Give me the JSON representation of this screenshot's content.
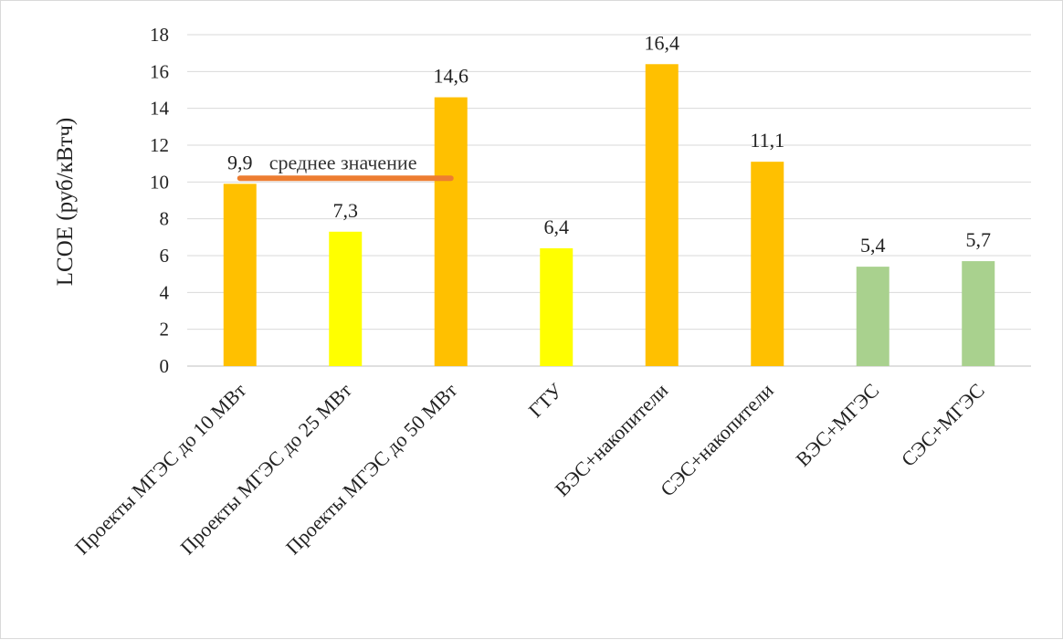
{
  "chart_data": {
    "type": "bar",
    "title": "",
    "xlabel": "",
    "ylabel": "LCOE (руб/кВтч)",
    "ylim": [
      0,
      18
    ],
    "yticks": [
      0,
      2,
      4,
      6,
      8,
      10,
      12,
      14,
      16,
      18
    ],
    "grid": true,
    "legend": "none",
    "categories": [
      "Проекты МГЭС до 10 МВт",
      "Проекты МГЭС до 25 МВт",
      "Проекты МГЭС до 50 МВт",
      "ГТУ",
      "ВЭС+накопители",
      "СЭС+накопители",
      "ВЭС+МГЭС",
      "СЭС+МГЭС"
    ],
    "values": [
      9.9,
      7.3,
      14.6,
      6.4,
      16.4,
      11.1,
      5.4,
      5.7
    ],
    "value_labels": [
      "9,9",
      "7,3",
      "14,6",
      "6,4",
      "16,4",
      "11,1",
      "5,4",
      "5,7"
    ],
    "bar_colors": [
      "#FFC000",
      "#FFFF00",
      "#FFC000",
      "#FFFF00",
      "#FFC000",
      "#FFC000",
      "#A9D18E",
      "#A9D18E"
    ],
    "reference_line": {
      "label": "среднее значение",
      "value": 10.2,
      "from_category": 0,
      "to_category": 2,
      "color": "#ED7D31"
    }
  }
}
